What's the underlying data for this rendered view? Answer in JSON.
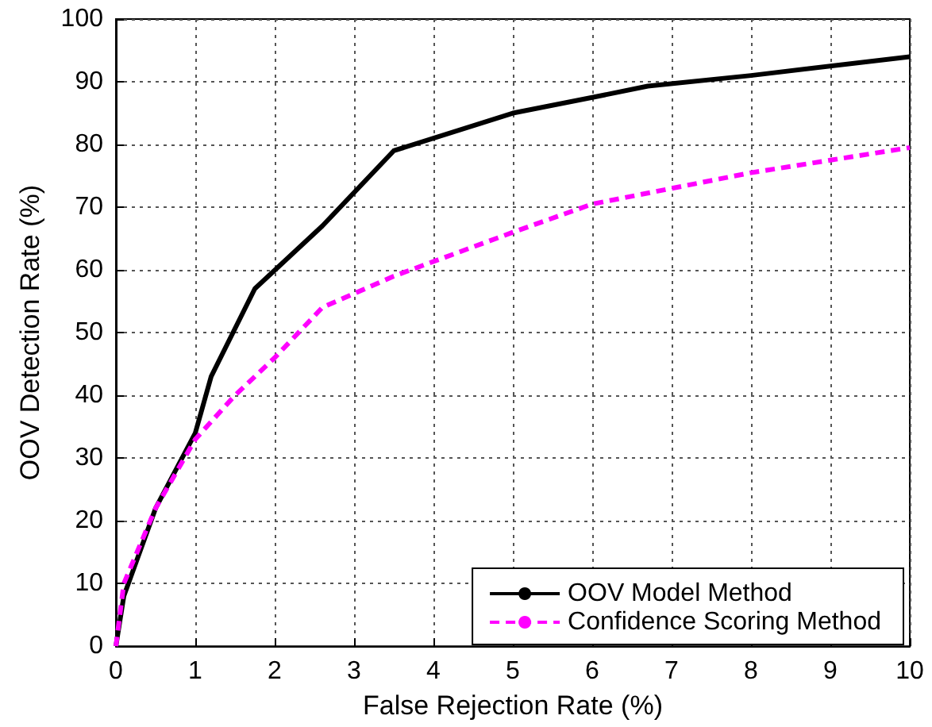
{
  "chart_data": {
    "type": "line",
    "xlabel": "False Rejection Rate (%)",
    "ylabel": "OOV Detection Rate (%)",
    "xlim": [
      0,
      10
    ],
    "xticks": [
      0,
      1,
      2,
      3,
      4,
      5,
      6,
      7,
      8,
      9,
      10
    ],
    "ylim": [
      0,
      100
    ],
    "yticks": [
      0,
      10,
      20,
      30,
      40,
      50,
      60,
      70,
      80,
      90,
      100
    ],
    "grid": true,
    "legend": "bottom right",
    "marker": "none",
    "series": [
      {
        "name": "OOV Model Method",
        "color": "#000000",
        "line_style": "solid",
        "x": [
          0,
          0.1,
          0.5,
          1,
          1.2,
          1.75,
          2.6,
          3.5,
          5,
          6,
          6.7,
          8,
          10
        ],
        "values": [
          0,
          8,
          22,
          34,
          43,
          57,
          67,
          79,
          85,
          87.5,
          89.3,
          91,
          94
        ]
      },
      {
        "name": "Confidence Scoring Method",
        "color": "#ff00ff",
        "line_style": "dashed",
        "x": [
          0,
          0.1,
          0.5,
          1,
          1.5,
          2,
          2.6,
          3.5,
          5,
          6,
          7,
          8,
          9,
          10
        ],
        "values": [
          0,
          10,
          22,
          33,
          40,
          46,
          54,
          59,
          66,
          70.5,
          73,
          75.5,
          77.5,
          79.5
        ]
      }
    ]
  }
}
